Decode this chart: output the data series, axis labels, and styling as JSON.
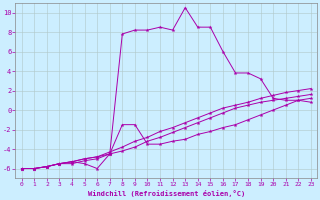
{
  "xlabel": "Windchill (Refroidissement éolien,°C)",
  "background_color": "#cceeff",
  "grid_color": "#b0c8c8",
  "line_color": "#aa00aa",
  "xlim": [
    -0.5,
    23.5
  ],
  "ylim": [
    -7,
    11
  ],
  "xticks": [
    0,
    1,
    2,
    3,
    4,
    5,
    6,
    7,
    8,
    9,
    10,
    11,
    12,
    13,
    14,
    15,
    16,
    17,
    18,
    19,
    20,
    21,
    22,
    23
  ],
  "yticks": [
    -6,
    -4,
    -2,
    0,
    2,
    4,
    6,
    8,
    10
  ],
  "series": [
    {
      "x": [
        0,
        1,
        2,
        3,
        4,
        5,
        6,
        7,
        8,
        9,
        10,
        11,
        12,
        13,
        14,
        15,
        16,
        17,
        18,
        19,
        20,
        21,
        22,
        23
      ],
      "y": [
        -6,
        -6,
        -5.8,
        -5.5,
        -5.3,
        -5.5,
        -6,
        -4.5,
        7.8,
        8.2,
        8.2,
        8.5,
        8.2,
        10.5,
        8.5,
        8.5,
        6.0,
        3.8,
        3.8,
        3.2,
        1.2,
        1.0,
        1.0,
        0.8
      ]
    },
    {
      "x": [
        0,
        1,
        2,
        3,
        4,
        5,
        6,
        7,
        8,
        9,
        10,
        11,
        12,
        13,
        14,
        15,
        16,
        17,
        18,
        19,
        20,
        21,
        22,
        23
      ],
      "y": [
        -6,
        -6,
        -5.8,
        -5.5,
        -5.5,
        -5.2,
        -5.0,
        -4.5,
        -1.5,
        -1.5,
        -3.5,
        -3.5,
        -3.2,
        -3.0,
        -2.5,
        -2.2,
        -1.8,
        -1.5,
        -1.0,
        -0.5,
        0.0,
        0.5,
        1.0,
        1.2
      ]
    },
    {
      "x": [
        0,
        1,
        2,
        3,
        4,
        5,
        6,
        7,
        8,
        9,
        10,
        11,
        12,
        13,
        14,
        15,
        16,
        17,
        18,
        19,
        20,
        21,
        22,
        23
      ],
      "y": [
        -6,
        -6,
        -5.8,
        -5.5,
        -5.3,
        -5.0,
        -4.8,
        -4.5,
        -4.2,
        -3.8,
        -3.2,
        -2.8,
        -2.3,
        -1.8,
        -1.3,
        -0.8,
        -0.3,
        0.2,
        0.5,
        0.8,
        1.0,
        1.2,
        1.4,
        1.6
      ]
    },
    {
      "x": [
        0,
        1,
        2,
        3,
        4,
        5,
        6,
        7,
        8,
        9,
        10,
        11,
        12,
        13,
        14,
        15,
        16,
        17,
        18,
        19,
        20,
        21,
        22,
        23
      ],
      "y": [
        -6,
        -6,
        -5.8,
        -5.5,
        -5.3,
        -5.0,
        -4.8,
        -4.3,
        -3.8,
        -3.2,
        -2.8,
        -2.2,
        -1.8,
        -1.3,
        -0.8,
        -0.3,
        0.2,
        0.5,
        0.8,
        1.2,
        1.5,
        1.8,
        2.0,
        2.2
      ]
    }
  ]
}
